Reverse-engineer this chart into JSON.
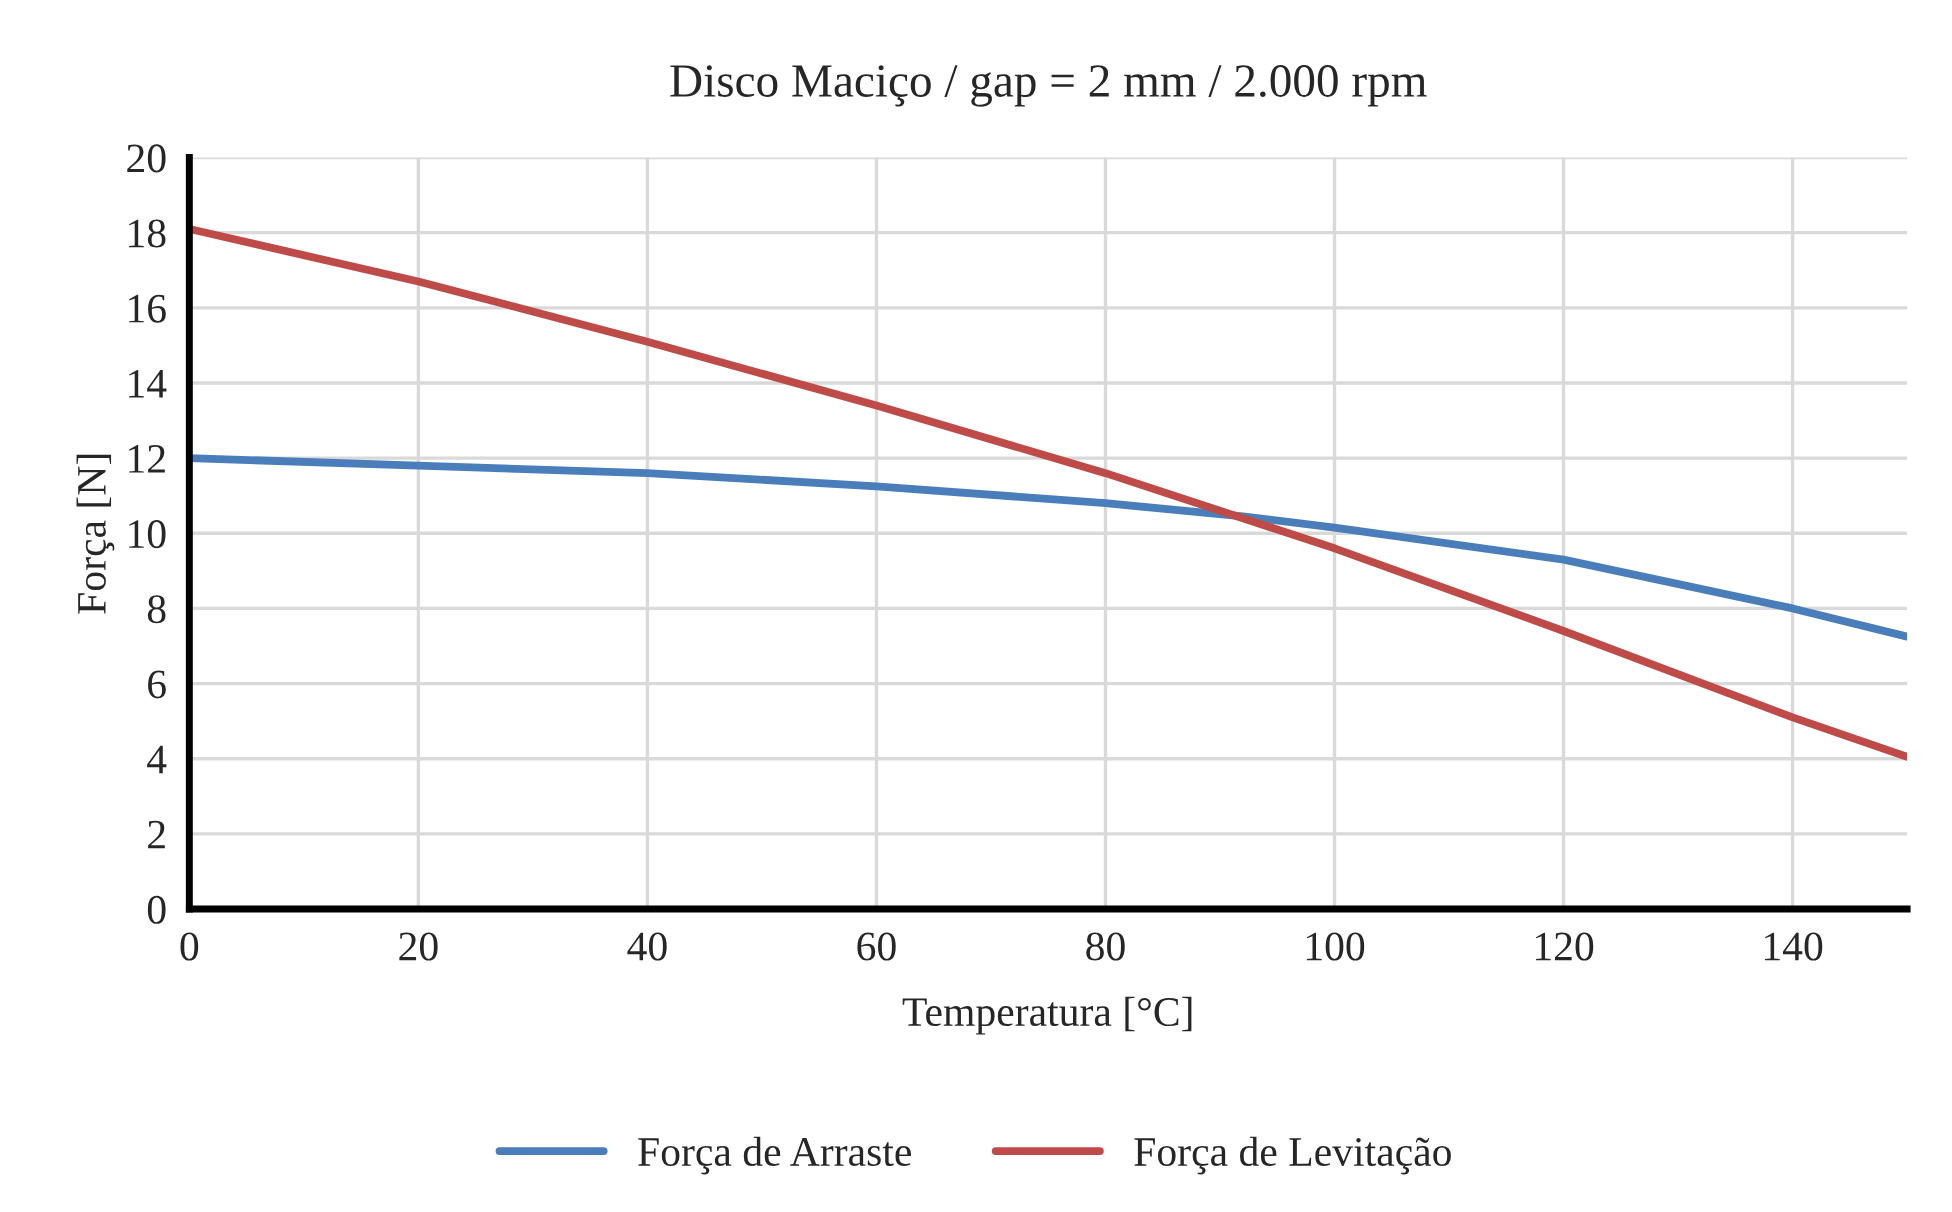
{
  "chart_data": {
    "type": "line",
    "title": "Disco Maciço / gap = 2 mm / 2.000 rpm",
    "xlabel": "Temperatura [°C]",
    "ylabel": "Força [N]",
    "x": [
      0,
      20,
      40,
      60,
      80,
      92,
      100,
      120,
      140,
      150
    ],
    "series": [
      {
        "name": "Força de Arraste",
        "color": "#4a7ebb",
        "values": [
          12.0,
          11.8,
          11.6,
          11.25,
          10.8,
          10.45,
          10.15,
          9.3,
          8.0,
          7.25
        ]
      },
      {
        "name": "Força de Levitação",
        "color": "#be4b48",
        "values": [
          18.1,
          16.7,
          15.1,
          13.4,
          11.6,
          10.4,
          9.6,
          7.4,
          5.1,
          4.05
        ]
      }
    ],
    "xlim": [
      0,
      150
    ],
    "xticks": [
      0,
      20,
      40,
      60,
      80,
      100,
      120,
      140
    ],
    "ylim": [
      0,
      20
    ],
    "yticks": [
      0,
      2,
      4,
      6,
      8,
      10,
      12,
      14,
      16,
      18,
      20
    ],
    "grid": true,
    "legend": "bottom",
    "marker": "none",
    "line_style": "solid"
  }
}
